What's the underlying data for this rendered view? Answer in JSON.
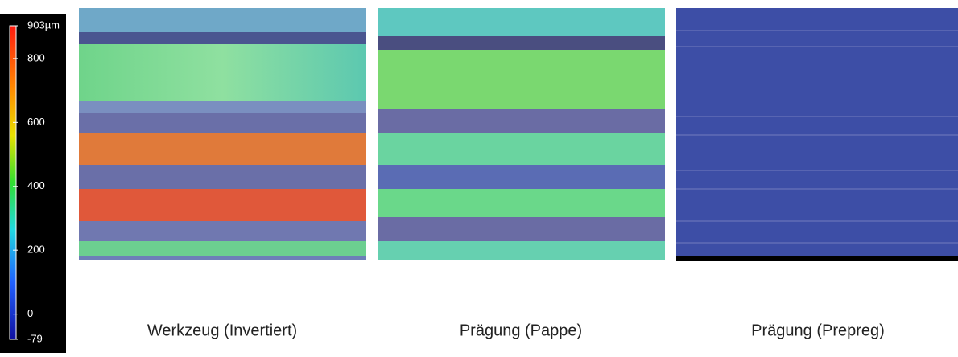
{
  "colorbar": {
    "ticks": [
      {
        "value": 903,
        "label": "903µm"
      },
      800,
      600,
      400,
      200,
      0,
      -79
    ]
  },
  "panels": [
    {
      "caption": "Werkzeug (Invertiert)"
    },
    {
      "caption": "Prägung (Pappe)"
    },
    {
      "caption": "Prägung (Prepreg)"
    }
  ]
}
